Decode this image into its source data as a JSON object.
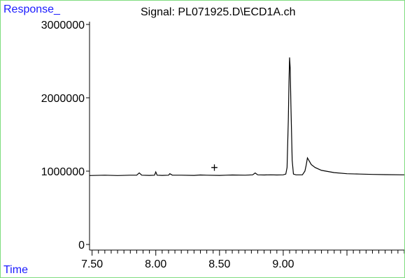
{
  "chart_data": {
    "type": "line",
    "title": "Signal: PL071925.D\\ECD1A.ch",
    "ylabel": "Response_",
    "xlabel": "Time",
    "xlim": [
      7.48,
      9.95
    ],
    "ylim": [
      0,
      3000000
    ],
    "x_ticks": [
      7.5,
      8.0,
      8.5,
      9.0
    ],
    "x_tick_labels": [
      "7.50",
      "8.00",
      "8.50",
      "9.00"
    ],
    "y_ticks": [
      0,
      1000000,
      2000000,
      3000000
    ],
    "y_tick_labels": [
      "0",
      "1000000",
      "2000000",
      "3000000"
    ],
    "grid": false,
    "annotations": [
      {
        "text": "+",
        "x": 8.46,
        "y": 1050000
      }
    ],
    "series": [
      {
        "color": "#000000",
        "x": [
          7.48,
          7.6,
          7.7,
          7.8,
          7.85,
          7.87,
          7.89,
          7.95,
          7.99,
          8.0,
          8.01,
          8.05,
          8.1,
          8.11,
          8.13,
          8.2,
          8.3,
          8.35,
          8.4,
          8.5,
          8.55,
          8.6,
          8.7,
          8.76,
          8.78,
          8.8,
          8.85,
          8.9,
          8.95,
          9.0,
          9.02,
          9.03,
          9.04,
          9.045,
          9.05,
          9.055,
          9.06,
          9.07,
          9.08,
          9.1,
          9.15,
          9.17,
          9.18,
          9.19,
          9.2,
          9.22,
          9.25,
          9.3,
          9.4,
          9.5,
          9.6,
          9.7,
          9.8,
          9.95
        ],
        "y": [
          940000,
          945000,
          940000,
          945000,
          945000,
          975000,
          945000,
          942000,
          945000,
          990000,
          945000,
          942000,
          945000,
          965000,
          945000,
          945000,
          942000,
          948000,
          945000,
          942000,
          945000,
          948000,
          945000,
          950000,
          975000,
          950000,
          948000,
          950000,
          948000,
          950000,
          960000,
          1050000,
          1700000,
          2200000,
          2550000,
          2400000,
          1900000,
          1150000,
          960000,
          950000,
          950000,
          1000000,
          1080000,
          1180000,
          1150000,
          1090000,
          1050000,
          1010000,
          980000,
          965000,
          960000,
          955000,
          952000,
          950000
        ]
      }
    ]
  }
}
